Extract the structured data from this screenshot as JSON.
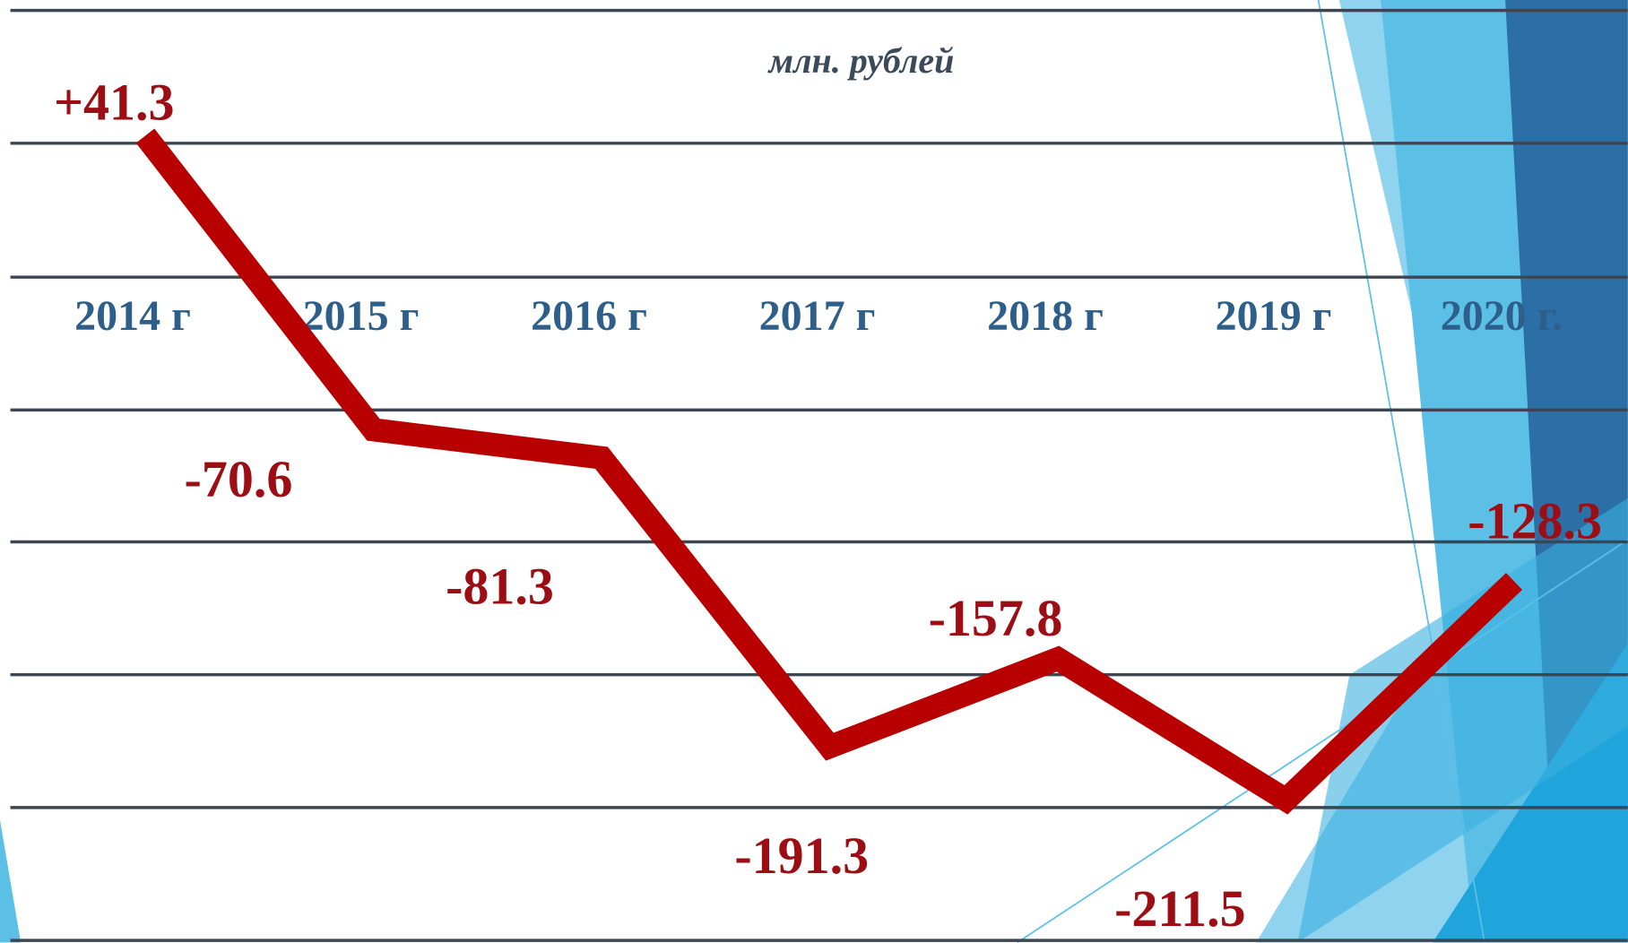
{
  "chart_data": {
    "type": "line",
    "subtitle": "млн. рублей",
    "categories": [
      "2014 г",
      "2015 г",
      "2016 г",
      "2017 г",
      "2018 г",
      "2019 г",
      "2020 г."
    ],
    "values": [
      41.3,
      -70.6,
      -81.3,
      -191.3,
      -157.8,
      -211.5,
      -128.3
    ],
    "value_labels": [
      "+41.3",
      "-70.6",
      "-81.3",
      "-191.3",
      "-157.8",
      "-211.5",
      "-128.3"
    ],
    "color": "#b80000",
    "ylim": [
      -266,
      93
    ]
  }
}
